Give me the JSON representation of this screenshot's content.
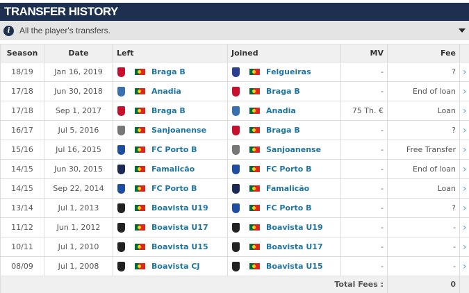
{
  "title": "TRANSFER HISTORY",
  "info": "All the player's transfers.",
  "headers": {
    "season": "Season",
    "date": "Date",
    "left": "Left",
    "joined": "Joined",
    "mv": "MV",
    "fee": "Fee"
  },
  "colors": {
    "braga": "#c8102e",
    "anadia": "#3a6fb0",
    "felgueiras": "#2a3f8f",
    "sanjoanense": "#777777",
    "porto": "#1f4ea1",
    "famalicao": "#1b2b55",
    "boavista": "#222222"
  },
  "rows": [
    {
      "season": "18/19",
      "date": "Jan 16, 2019",
      "left": "Braga B",
      "left_crest": "braga",
      "joined": "Felgueiras",
      "joined_crest": "felgueiras",
      "mv": "-",
      "fee": "?"
    },
    {
      "season": "17/18",
      "date": "Jun 30, 2018",
      "left": "Anadia",
      "left_crest": "anadia",
      "joined": "Braga B",
      "joined_crest": "braga",
      "mv": "-",
      "fee": "End of loan"
    },
    {
      "season": "17/18",
      "date": "Sep 1, 2017",
      "left": "Braga B",
      "left_crest": "braga",
      "joined": "Anadia",
      "joined_crest": "anadia",
      "mv": "75 Th. €",
      "fee": "Loan"
    },
    {
      "season": "16/17",
      "date": "Jul 5, 2016",
      "left": "Sanjoanense",
      "left_crest": "sanjoanense",
      "joined": "Braga B",
      "joined_crest": "braga",
      "mv": "-",
      "fee": "?"
    },
    {
      "season": "15/16",
      "date": "Jul 16, 2015",
      "left": "FC Porto B",
      "left_crest": "porto",
      "joined": "Sanjoanense",
      "joined_crest": "sanjoanense",
      "mv": "-",
      "fee": "Free Transfer"
    },
    {
      "season": "14/15",
      "date": "Jun 30, 2015",
      "left": "Famalicão",
      "left_crest": "famalicao",
      "joined": "FC Porto B",
      "joined_crest": "porto",
      "mv": "-",
      "fee": "End of loan"
    },
    {
      "season": "14/15",
      "date": "Sep 22, 2014",
      "left": "FC Porto B",
      "left_crest": "porto",
      "joined": "Famalicão",
      "joined_crest": "famalicao",
      "mv": "-",
      "fee": "Loan"
    },
    {
      "season": "13/14",
      "date": "Jul 1, 2013",
      "left": "Boavista U19",
      "left_crest": "boavista",
      "joined": "FC Porto B",
      "joined_crest": "porto",
      "mv": "-",
      "fee": "?"
    },
    {
      "season": "11/12",
      "date": "Jun 1, 2012",
      "left": "Boavista U17",
      "left_crest": "boavista",
      "joined": "Boavista U19",
      "joined_crest": "boavista",
      "mv": "-",
      "fee": "-"
    },
    {
      "season": "10/11",
      "date": "Jul 1, 2010",
      "left": "Boavista U15",
      "left_crest": "boavista",
      "joined": "Boavista U17",
      "joined_crest": "boavista",
      "mv": "-",
      "fee": "-"
    },
    {
      "season": "08/09",
      "date": "Jul 1, 2008",
      "left": "Boavista CJ",
      "left_crest": "boavista",
      "joined": "Boavista U15",
      "joined_crest": "boavista",
      "mv": "-",
      "fee": "-"
    }
  ],
  "total": {
    "label": "Total Fees :",
    "value": "0"
  }
}
